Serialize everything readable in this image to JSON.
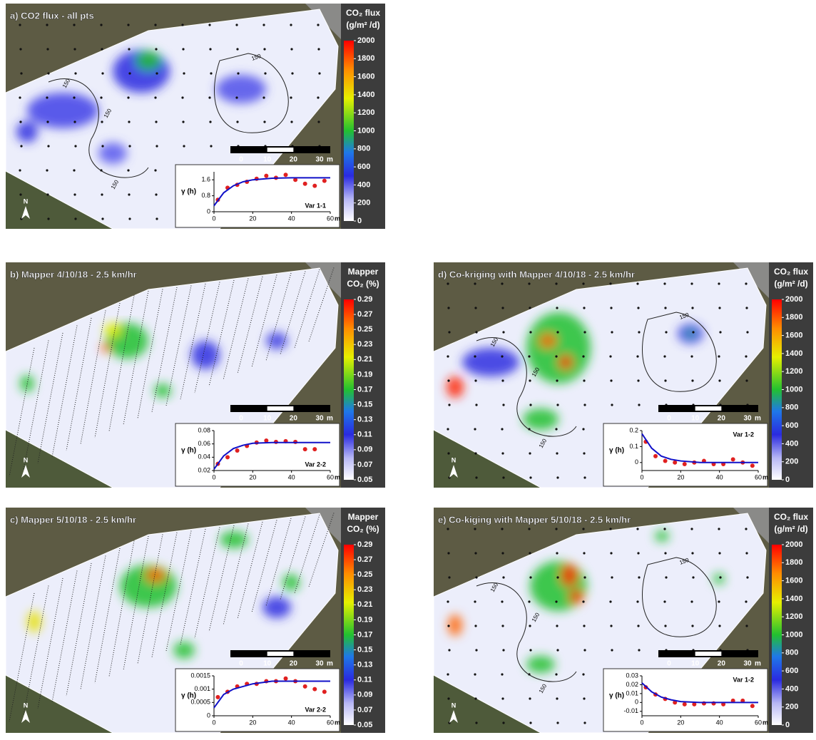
{
  "north_label": "N",
  "panels": [
    {
      "title": "a) CO2 flux - all pts",
      "colorbar": {
        "title": [
          "CO₂ flux",
          "(g/m² /d)"
        ],
        "clim": [
          0,
          2000
        ],
        "ticks": [
          0,
          200,
          400,
          600,
          800,
          1000,
          1200,
          1400,
          1600,
          1800,
          2000
        ]
      },
      "contour_label": "150",
      "scale_bar": {
        "ticks": [
          0,
          10,
          20,
          30
        ],
        "unit": "m"
      },
      "variogram": {
        "ylabel": "γ (h)",
        "label": "Var 1-1",
        "xlim": [
          0,
          60
        ],
        "ylim": [
          0,
          2.0
        ],
        "xticks": [
          0,
          20,
          40,
          60
        ],
        "yticks": [
          0,
          0.8,
          1.6
        ],
        "x_unit": "m",
        "points": {
          "x": [
            2,
            7,
            12,
            17,
            22,
            27,
            32,
            37,
            42,
            47,
            52,
            57
          ],
          "y": [
            0.6,
            1.2,
            1.35,
            1.5,
            1.65,
            1.8,
            1.7,
            1.85,
            1.6,
            1.4,
            1.3,
            1.55
          ]
        },
        "fit": {
          "x": [
            0,
            5,
            10,
            15,
            20,
            30,
            40,
            50,
            60
          ],
          "y": [
            0.3,
            0.95,
            1.3,
            1.5,
            1.6,
            1.68,
            1.7,
            1.7,
            1.7
          ]
        }
      }
    },
    {
      "title": "b) Mapper 4/10/18 - 2.5 km/hr",
      "colorbar": {
        "title": [
          "Mapper",
          "CO₂ (%)"
        ],
        "clim": [
          0.05,
          0.29
        ],
        "ticks": [
          0.05,
          0.07,
          0.09,
          0.11,
          0.13,
          0.15,
          0.17,
          0.19,
          0.21,
          0.23,
          0.25,
          0.27,
          0.29
        ]
      },
      "scale_bar": {
        "ticks": [
          0,
          10,
          20,
          30
        ],
        "unit": "m"
      },
      "variogram": {
        "ylabel": "γ (h)",
        "label": "Var 2-2",
        "xlim": [
          0,
          60
        ],
        "ylim": [
          0.02,
          0.08
        ],
        "xticks": [
          0,
          20,
          40,
          60
        ],
        "yticks": [
          0.02,
          0.04,
          0.06,
          0.08
        ],
        "x_unit": "m",
        "points": {
          "x": [
            2,
            7,
            12,
            17,
            22,
            27,
            32,
            37,
            42,
            47,
            52
          ],
          "y": [
            0.03,
            0.04,
            0.05,
            0.057,
            0.062,
            0.065,
            0.063,
            0.064,
            0.063,
            0.052,
            0.052
          ]
        },
        "fit": {
          "x": [
            0,
            5,
            10,
            15,
            20,
            30,
            40,
            50,
            60
          ],
          "y": [
            0.022,
            0.042,
            0.053,
            0.058,
            0.061,
            0.062,
            0.062,
            0.062,
            0.062
          ]
        }
      }
    },
    {
      "title": "c) Mapper 5/10/18 - 2.5 km/hr",
      "colorbar": {
        "title": [
          "Mapper",
          "CO₂ (%)"
        ],
        "clim": [
          0.05,
          0.29
        ],
        "ticks": [
          0.05,
          0.07,
          0.09,
          0.11,
          0.13,
          0.15,
          0.17,
          0.19,
          0.21,
          0.23,
          0.25,
          0.27,
          0.29
        ]
      },
      "scale_bar": {
        "ticks": [
          0,
          10,
          20,
          30
        ],
        "unit": "m"
      },
      "variogram": {
        "ylabel": "γ (h)",
        "label": "Var 2-2",
        "xlim": [
          0,
          60
        ],
        "ylim": [
          0,
          0.0015
        ],
        "xticks": [
          0,
          20,
          40,
          60
        ],
        "yticks": [
          0,
          0.0005,
          0.001,
          0.0015
        ],
        "x_unit": "m",
        "points": {
          "x": [
            2,
            7,
            12,
            17,
            22,
            27,
            32,
            37,
            42,
            47,
            52,
            57
          ],
          "y": [
            0.0007,
            0.0009,
            0.0011,
            0.0012,
            0.0012,
            0.0013,
            0.0013,
            0.0014,
            0.0013,
            0.0011,
            0.001,
            0.0009
          ]
        },
        "fit": {
          "x": [
            0,
            5,
            10,
            15,
            20,
            30,
            40,
            50,
            60
          ],
          "y": [
            0.0003,
            0.0008,
            0.001,
            0.0011,
            0.0012,
            0.0013,
            0.0013,
            0.0013,
            0.0013
          ]
        }
      }
    },
    {
      "title": "d) Co-kriging with Mapper 4/10/18 - 2.5 km/hr",
      "colorbar": {
        "title": [
          "CO₂ flux",
          "(g/m² /d)"
        ],
        "clim": [
          0,
          2000
        ],
        "ticks": [
          0,
          200,
          400,
          600,
          800,
          1000,
          1200,
          1400,
          1600,
          1800,
          2000
        ]
      },
      "contour_label": "150",
      "scale_bar": {
        "ticks": [
          0,
          10,
          20,
          30
        ],
        "unit": "m"
      },
      "variogram": {
        "ylabel": "γ (h)",
        "label": "Var 1-2",
        "xlim": [
          0,
          60
        ],
        "ylim": [
          -0.05,
          0.2
        ],
        "xticks": [
          0,
          20,
          40,
          60
        ],
        "yticks": [
          0,
          0.1,
          0.2
        ],
        "x_unit": "m",
        "points": {
          "x": [
            2,
            7,
            12,
            17,
            22,
            27,
            32,
            37,
            42,
            47,
            52,
            57
          ],
          "y": [
            0.13,
            0.04,
            0.01,
            0.0,
            -0.01,
            0.0,
            0.01,
            -0.01,
            -0.01,
            0.02,
            0.0,
            -0.02
          ]
        },
        "fit": {
          "x": [
            0,
            5,
            10,
            15,
            20,
            30,
            40,
            50,
            60
          ],
          "y": [
            0.18,
            0.09,
            0.04,
            0.02,
            0.01,
            0.0,
            0.0,
            0.0,
            0.0
          ]
        }
      }
    },
    {
      "title": "e) Co-kiging with Mapper 5/10/18 - 2.5 km/hr",
      "colorbar": {
        "title": [
          "CO₂ flux",
          "(g/m² /d)"
        ],
        "clim": [
          0,
          2000
        ],
        "ticks": [
          0,
          200,
          400,
          600,
          800,
          1000,
          1200,
          1400,
          1600,
          1800,
          2000
        ]
      },
      "contour_label": "150",
      "scale_bar": {
        "ticks": [
          0,
          10,
          20,
          30
        ],
        "unit": "m"
      },
      "variogram": {
        "ylabel": "γ (h)",
        "label": "Var 1-2",
        "xlim": [
          0,
          60
        ],
        "ylim": [
          -0.015,
          0.03
        ],
        "xticks": [
          0,
          20,
          40,
          60
        ],
        "yticks": [
          -0.01,
          0,
          0.01,
          0.02,
          0.03
        ],
        "x_unit": "m",
        "points": {
          "x": [
            2,
            7,
            12,
            17,
            22,
            27,
            32,
            37,
            42,
            47,
            52,
            57
          ],
          "y": [
            0.017,
            0.009,
            0.004,
            0.0,
            -0.002,
            -0.002,
            -0.001,
            -0.001,
            -0.002,
            0.002,
            0.002,
            -0.004
          ]
        },
        "fit": {
          "x": [
            0,
            5,
            10,
            15,
            20,
            30,
            40,
            50,
            60
          ],
          "y": [
            0.022,
            0.012,
            0.006,
            0.003,
            0.001,
            0.0,
            0.0,
            0.0,
            0.0
          ]
        }
      }
    }
  ]
}
